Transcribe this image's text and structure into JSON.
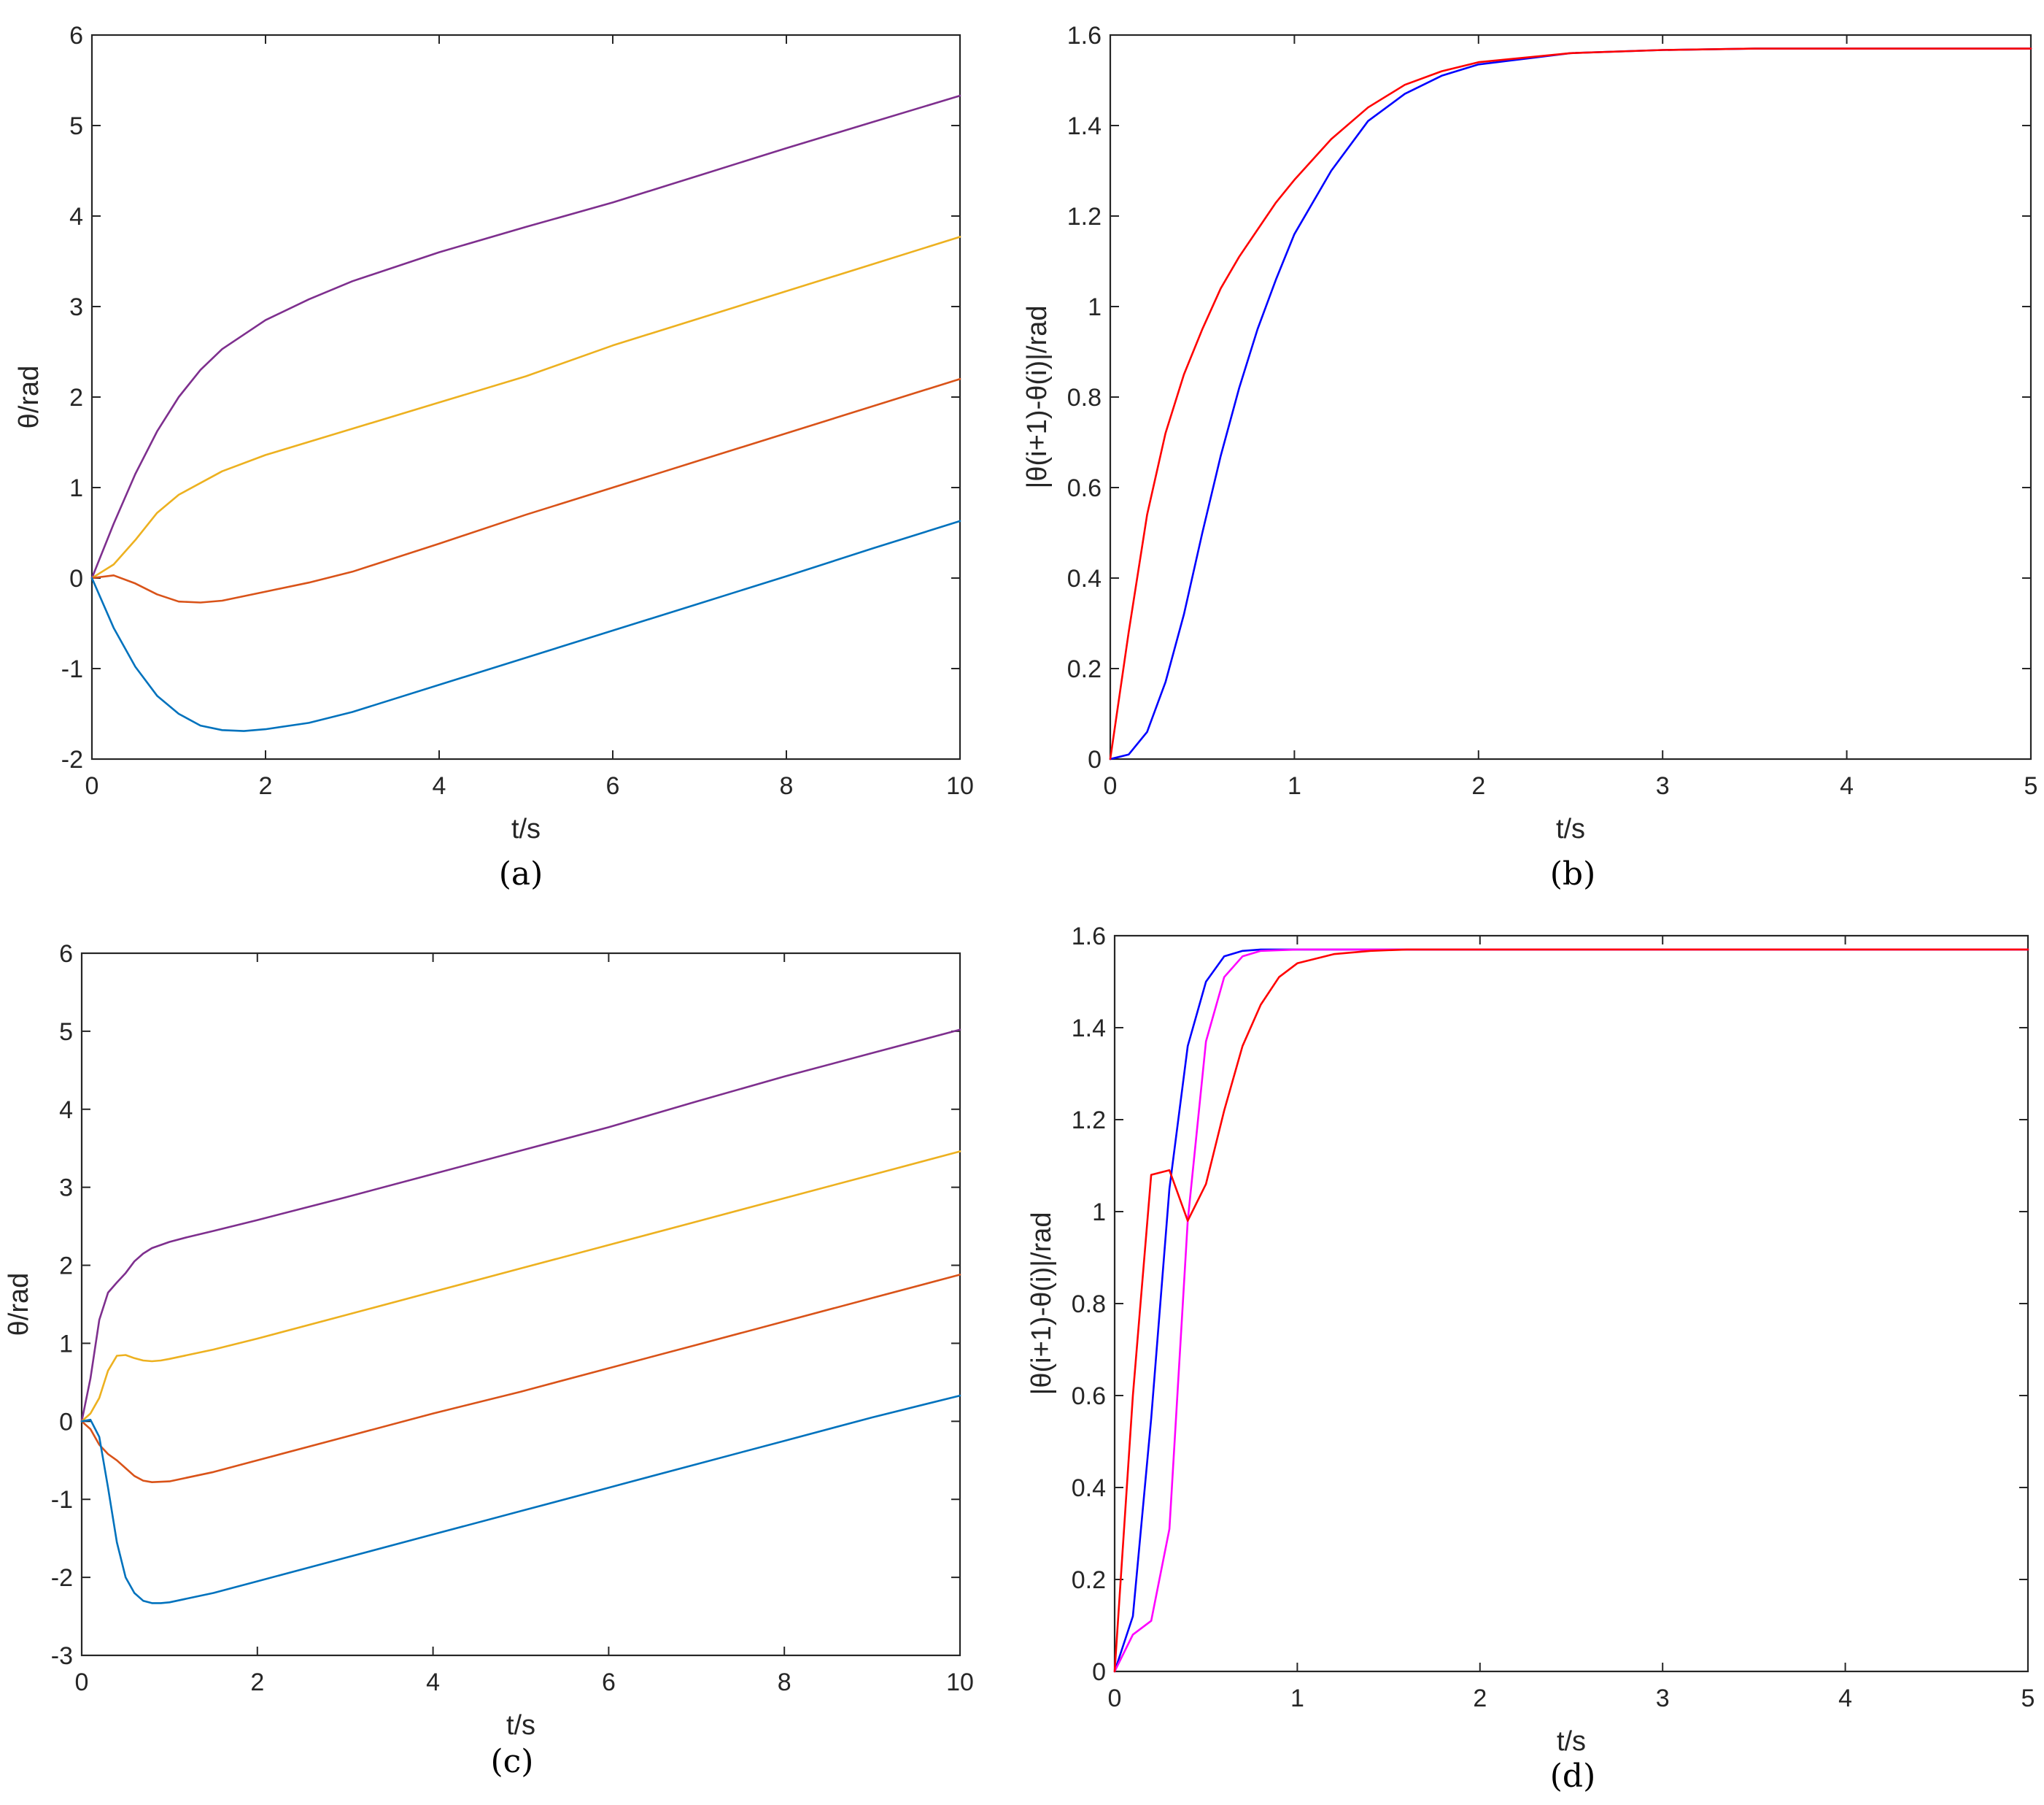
{
  "chart_data": [
    {
      "type": "line",
      "caption": "(a)",
      "xlabel": "t/s",
      "ylabel": "θ/rad",
      "xlim": [
        0,
        10
      ],
      "ylim": [
        -2,
        6
      ],
      "xticks": [
        "0",
        "2",
        "4",
        "6",
        "8",
        "10"
      ],
      "yticks": [
        "-2",
        "-1",
        "0",
        "1",
        "2",
        "3",
        "4",
        "5",
        "6"
      ],
      "grid": false,
      "series": [
        {
          "color": "#7E2F8E",
          "x": [
            0,
            0.25,
            0.5,
            0.75,
            1,
            1.25,
            1.5,
            2,
            2.5,
            3,
            4,
            5,
            6,
            7,
            8,
            9,
            10
          ],
          "y": [
            0,
            0.6,
            1.15,
            1.62,
            2.0,
            2.3,
            2.53,
            2.85,
            3.08,
            3.28,
            3.6,
            3.88,
            4.15,
            4.45,
            4.75,
            5.04,
            5.33
          ]
        },
        {
          "color": "#EDB120",
          "x": [
            0,
            0.25,
            0.5,
            0.75,
            1,
            1.5,
            2,
            3,
            4,
            5,
            6,
            7,
            8,
            9,
            10
          ],
          "y": [
            0,
            0.15,
            0.42,
            0.72,
            0.92,
            1.18,
            1.36,
            1.65,
            1.94,
            2.23,
            2.57,
            2.87,
            3.17,
            3.47,
            3.77
          ]
        },
        {
          "color": "#D95319",
          "x": [
            0,
            0.25,
            0.5,
            0.75,
            1,
            1.25,
            1.5,
            2,
            2.5,
            3,
            4,
            5,
            6,
            7,
            8,
            9,
            10
          ],
          "y": [
            0,
            0.03,
            -0.06,
            -0.18,
            -0.26,
            -0.27,
            -0.25,
            -0.15,
            -0.05,
            0.07,
            0.38,
            0.7,
            1.0,
            1.3,
            1.6,
            1.9,
            2.2
          ]
        },
        {
          "color": "#0072BD",
          "x": [
            0,
            0.25,
            0.5,
            0.75,
            1,
            1.25,
            1.5,
            1.75,
            2,
            2.5,
            3,
            4,
            5,
            6,
            7,
            8,
            9,
            10
          ],
          "y": [
            0,
            -0.55,
            -0.98,
            -1.3,
            -1.5,
            -1.63,
            -1.68,
            -1.69,
            -1.67,
            -1.6,
            -1.48,
            -1.18,
            -0.88,
            -0.58,
            -0.28,
            0.02,
            0.33,
            0.63
          ]
        }
      ]
    },
    {
      "type": "line",
      "caption": "(b)",
      "xlabel": "t/s",
      "ylabel": "|θ(i+1)-θ(i)|/rad",
      "xlim": [
        0,
        5
      ],
      "ylim": [
        0,
        1.6
      ],
      "xticks": [
        "0",
        "1",
        "2",
        "3",
        "4",
        "5"
      ],
      "yticks": [
        "0",
        "0.2",
        "0.4",
        "0.6",
        "0.8",
        "1",
        "1.2",
        "1.4",
        "1.6"
      ],
      "grid": false,
      "series": [
        {
          "color": "#0000FF",
          "x": [
            0,
            0.1,
            0.2,
            0.3,
            0.4,
            0.5,
            0.6,
            0.7,
            0.8,
            0.9,
            1,
            1.2,
            1.4,
            1.6,
            1.8,
            2,
            2.5,
            3,
            3.5,
            4,
            5
          ],
          "y": [
            0,
            0.01,
            0.06,
            0.17,
            0.32,
            0.5,
            0.67,
            0.82,
            0.95,
            1.06,
            1.16,
            1.3,
            1.41,
            1.47,
            1.51,
            1.535,
            1.56,
            1.567,
            1.57,
            1.57,
            1.57
          ]
        },
        {
          "color": "#FF0000",
          "x": [
            0,
            0.1,
            0.2,
            0.3,
            0.4,
            0.5,
            0.6,
            0.7,
            0.8,
            0.9,
            1,
            1.2,
            1.4,
            1.6,
            1.8,
            2,
            2.5,
            3,
            3.5,
            4,
            5
          ],
          "y": [
            0,
            0.28,
            0.54,
            0.72,
            0.85,
            0.95,
            1.04,
            1.11,
            1.17,
            1.23,
            1.28,
            1.37,
            1.44,
            1.49,
            1.52,
            1.54,
            1.56,
            1.567,
            1.57,
            1.57,
            1.57
          ]
        }
      ]
    },
    {
      "type": "line",
      "caption": "(c)",
      "xlabel": "t/s",
      "ylabel": "θ/rad",
      "xlim": [
        0,
        10
      ],
      "ylim": [
        -3,
        6
      ],
      "xticks": [
        "0",
        "2",
        "4",
        "6",
        "8",
        "10"
      ],
      "yticks": [
        "-3",
        "-2",
        "-1",
        "0",
        "1",
        "2",
        "3",
        "4",
        "5",
        "6"
      ],
      "grid": false,
      "series": [
        {
          "color": "#7E2F8E",
          "x": [
            0,
            0.1,
            0.2,
            0.3,
            0.4,
            0.5,
            0.6,
            0.7,
            0.8,
            1,
            1.2,
            1.5,
            2,
            3,
            4,
            5,
            6,
            7,
            8,
            9,
            10
          ],
          "y": [
            0,
            0.55,
            1.3,
            1.65,
            1.78,
            1.9,
            2.05,
            2.15,
            2.22,
            2.3,
            2.36,
            2.44,
            2.58,
            2.87,
            3.17,
            3.47,
            3.77,
            4.1,
            4.42,
            4.72,
            5.02
          ]
        },
        {
          "color": "#EDB120",
          "x": [
            0,
            0.1,
            0.2,
            0.3,
            0.4,
            0.5,
            0.6,
            0.7,
            0.8,
            0.9,
            1,
            1.5,
            2,
            3,
            4,
            5,
            6,
            7,
            8,
            9,
            10
          ],
          "y": [
            0,
            0.1,
            0.3,
            0.65,
            0.84,
            0.85,
            0.81,
            0.78,
            0.77,
            0.78,
            0.8,
            0.92,
            1.06,
            1.36,
            1.66,
            1.96,
            2.26,
            2.56,
            2.86,
            3.16,
            3.46
          ]
        },
        {
          "color": "#D95319",
          "x": [
            0,
            0.1,
            0.2,
            0.3,
            0.4,
            0.5,
            0.6,
            0.7,
            0.8,
            1,
            1.5,
            2,
            3,
            4,
            5,
            6,
            7,
            8,
            9,
            10
          ],
          "y": [
            0,
            -0.1,
            -0.3,
            -0.42,
            -0.5,
            -0.6,
            -0.7,
            -0.76,
            -0.78,
            -0.77,
            -0.65,
            -0.5,
            -0.2,
            0.1,
            0.38,
            0.68,
            0.98,
            1.28,
            1.58,
            1.88
          ]
        },
        {
          "color": "#0072BD",
          "x": [
            0,
            0.1,
            0.2,
            0.3,
            0.4,
            0.5,
            0.6,
            0.7,
            0.8,
            0.9,
            1,
            1.5,
            2,
            3,
            4,
            5,
            6,
            7,
            8,
            9,
            10
          ],
          "y": [
            0,
            0.02,
            -0.2,
            -0.85,
            -1.55,
            -2.0,
            -2.2,
            -2.3,
            -2.33,
            -2.33,
            -2.32,
            -2.2,
            -2.05,
            -1.75,
            -1.45,
            -1.15,
            -0.85,
            -0.55,
            -0.25,
            0.05,
            0.33
          ]
        }
      ]
    },
    {
      "type": "line",
      "caption": "(d)",
      "xlabel": "t/s",
      "ylabel": "|θ(i+1)-θ(i)|/rad",
      "xlim": [
        0,
        5
      ],
      "ylim": [
        0,
        1.6
      ],
      "xticks": [
        "0",
        "1",
        "2",
        "3",
        "4",
        "5"
      ],
      "yticks": [
        "0",
        "0.2",
        "0.4",
        "0.6",
        "0.8",
        "1",
        "1.2",
        "1.4",
        "1.6"
      ],
      "grid": false,
      "series": [
        {
          "color": "#0000FF",
          "x": [
            0,
            0.1,
            0.2,
            0.3,
            0.4,
            0.5,
            0.6,
            0.7,
            0.8,
            1,
            1.5,
            2,
            3,
            4,
            5
          ],
          "y": [
            0,
            0.12,
            0.55,
            1.05,
            1.36,
            1.5,
            1.555,
            1.567,
            1.57,
            1.57,
            1.57,
            1.57,
            1.57,
            1.57,
            1.57
          ]
        },
        {
          "color": "#FF00FF",
          "x": [
            0,
            0.1,
            0.2,
            0.3,
            0.4,
            0.5,
            0.6,
            0.7,
            0.8,
            1,
            1.5,
            2,
            3,
            4,
            5
          ],
          "y": [
            0,
            0.08,
            0.11,
            0.31,
            0.98,
            1.37,
            1.51,
            1.555,
            1.567,
            1.57,
            1.57,
            1.57,
            1.57,
            1.57,
            1.57
          ]
        },
        {
          "color": "#FF0000",
          "x": [
            0,
            0.1,
            0.2,
            0.3,
            0.4,
            0.5,
            0.6,
            0.7,
            0.8,
            0.9,
            1,
            1.2,
            1.4,
            1.6,
            2,
            3,
            4,
            5
          ],
          "y": [
            0,
            0.6,
            1.08,
            1.09,
            0.98,
            1.06,
            1.22,
            1.36,
            1.45,
            1.51,
            1.54,
            1.56,
            1.567,
            1.57,
            1.57,
            1.57,
            1.57,
            1.57
          ]
        }
      ]
    }
  ]
}
